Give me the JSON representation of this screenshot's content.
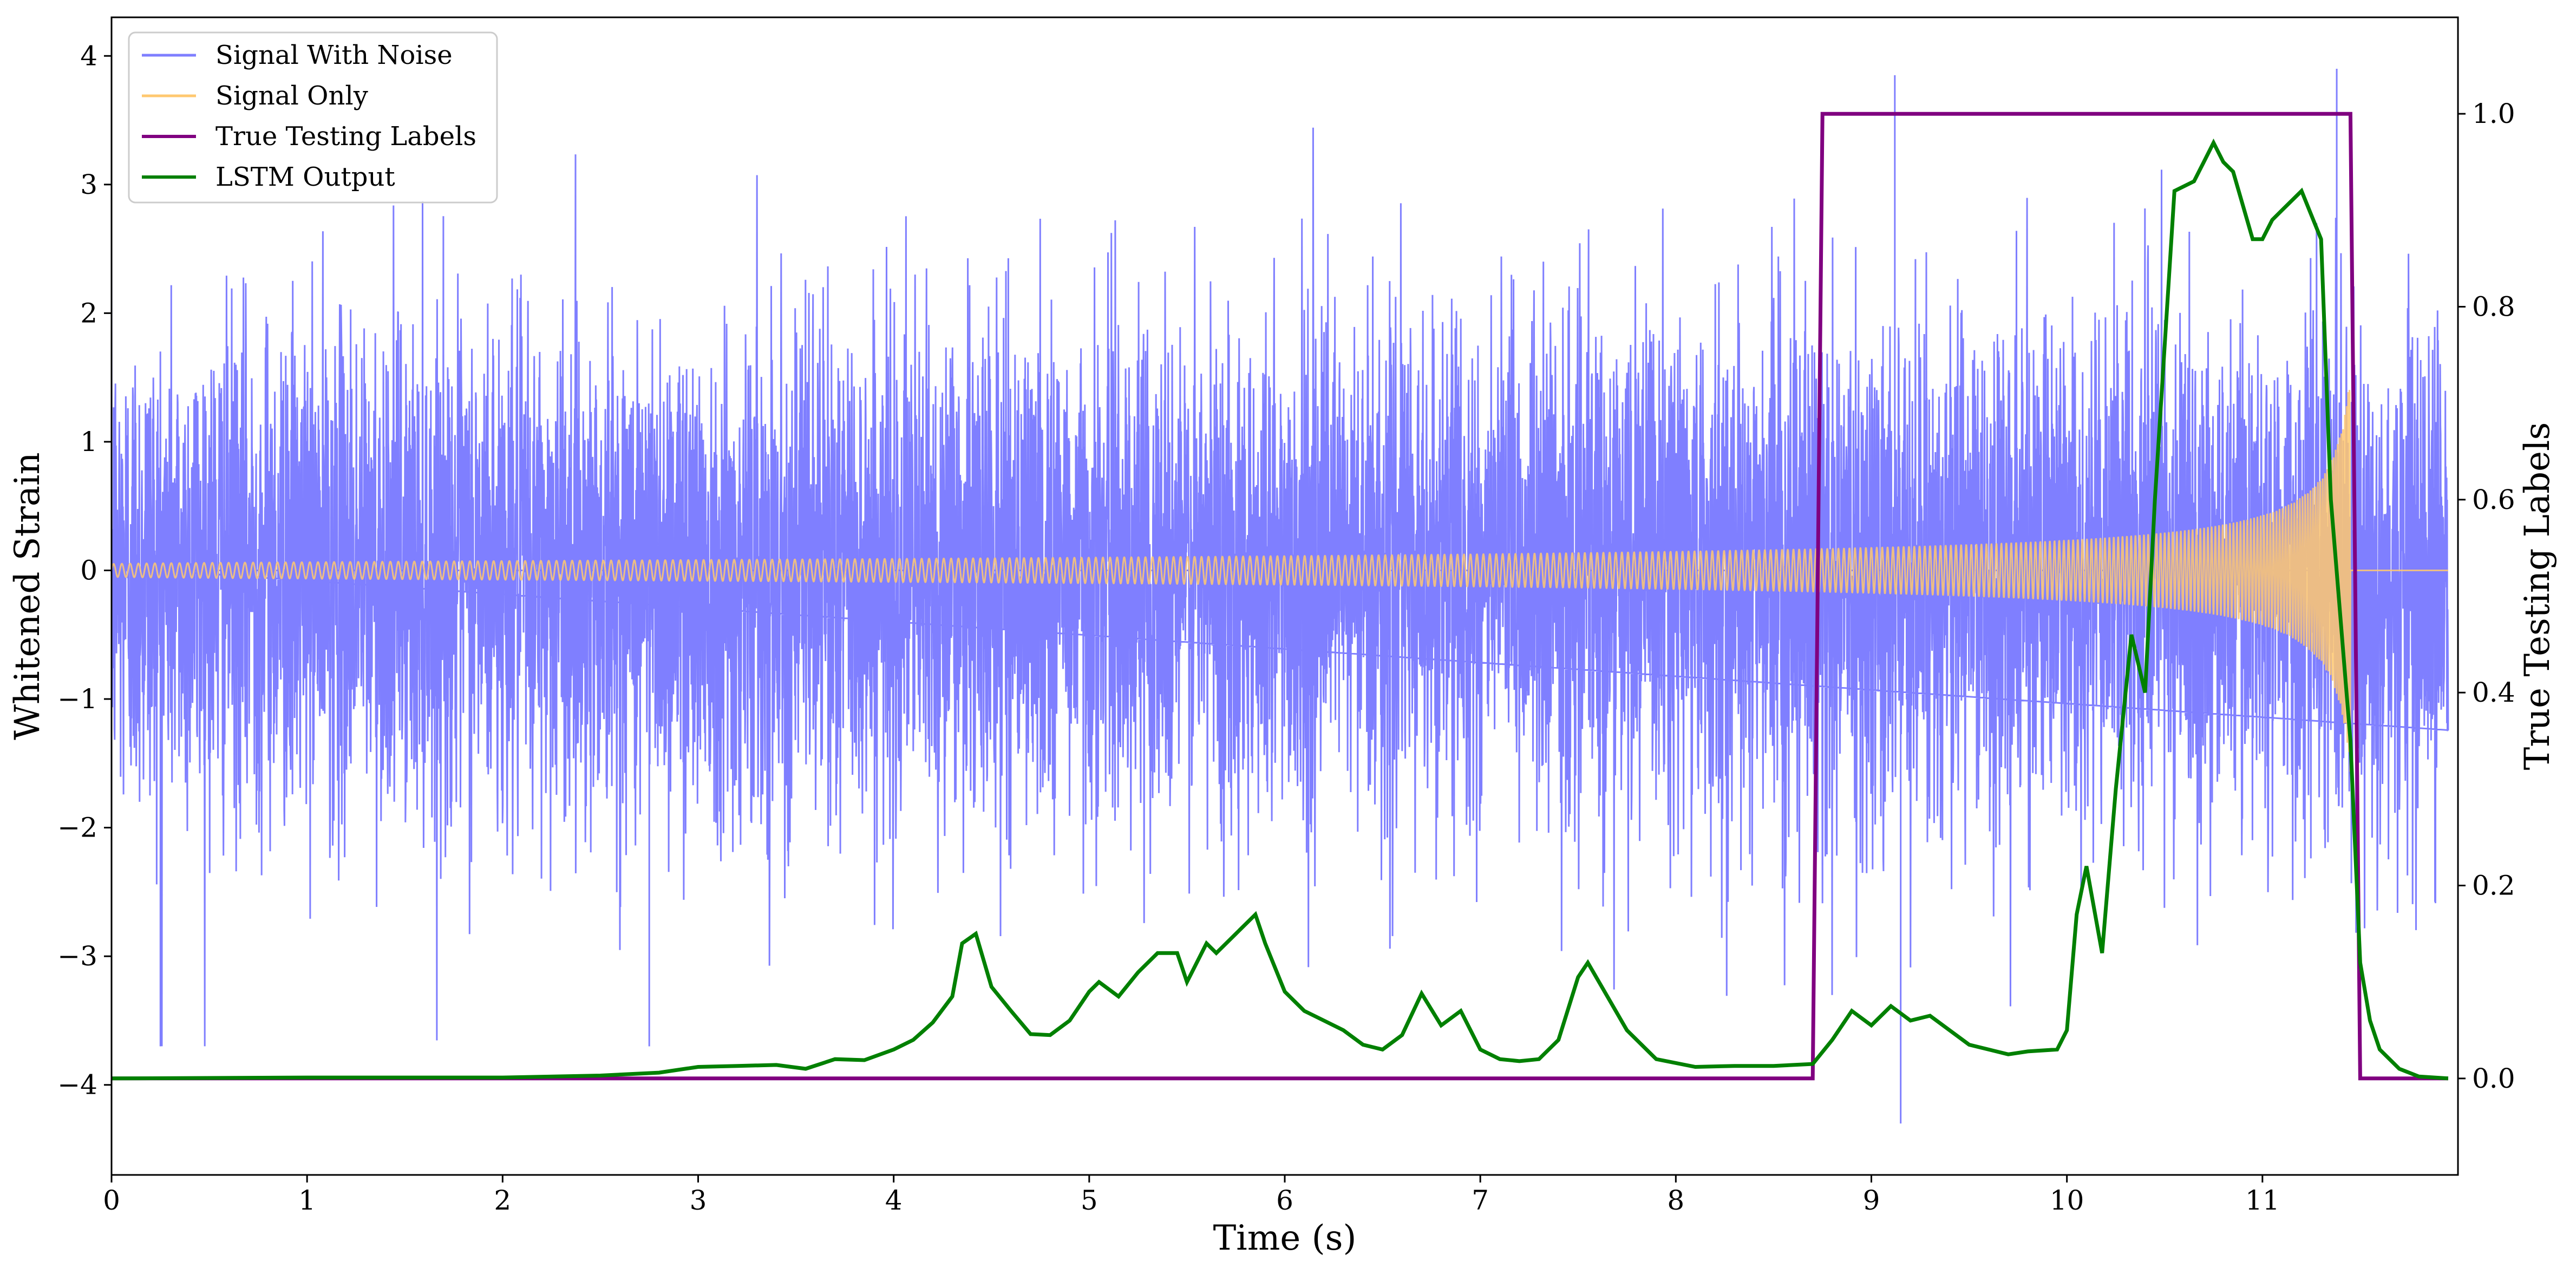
{
  "chart_data": {
    "type": "line",
    "xlabel": "Time (s)",
    "ylabel_left": "Whitened Strain",
    "ylabel_right": "True Testing Labels",
    "xlim": [
      0,
      12
    ],
    "ylim_left": [
      -4.7,
      4.3
    ],
    "ylim_right": [
      -0.1,
      1.1
    ],
    "x_ticks": [
      0,
      1,
      2,
      3,
      4,
      5,
      6,
      7,
      8,
      9,
      10,
      11
    ],
    "y_ticks_left": [
      4,
      3,
      2,
      1,
      0,
      -1,
      -2,
      -3,
      -4
    ],
    "y_ticks_left_labels": [
      "4",
      "3",
      "2",
      "1",
      "0",
      "−1",
      "−2",
      "−3",
      "−4"
    ],
    "y_ticks_right": [
      1.0,
      0.8,
      0.6,
      0.4,
      0.2,
      0.0
    ],
    "y_ticks_right_labels": [
      "1.0",
      "0.8",
      "0.6",
      "0.4",
      "0.2",
      "0.0"
    ],
    "grid": false,
    "legend_position": "top-left",
    "series": [
      {
        "name": "Signal With Noise",
        "axis": "left",
        "color": "#7f7fff",
        "description_range": [
          -4.3,
          3.9
        ],
        "peaks": [
          [
            0.25,
            -3.7
          ],
          [
            2.75,
            -3.7
          ],
          [
            9.12,
            3.85
          ],
          [
            9.15,
            -4.3
          ],
          [
            11.38,
            3.9
          ]
        ]
      },
      {
        "name": "Signal Only",
        "axis": "left",
        "color": "#ffc870",
        "chirp_start": 0.0,
        "chirp_end": 11.45,
        "amplitude_start": 0.05,
        "amplitude_end": 1.6
      },
      {
        "name": "True Testing Labels",
        "axis": "right",
        "color": "#800080",
        "x": [
          0,
          8.7,
          8.75,
          11.45,
          11.5,
          11.95
        ],
        "y": [
          0,
          0,
          1,
          1,
          0,
          0
        ]
      },
      {
        "name": "LSTM Output",
        "axis": "right",
        "color": "#008000",
        "x": [
          0,
          1.0,
          2.0,
          2.5,
          2.8,
          3.0,
          3.2,
          3.4,
          3.55,
          3.7,
          3.85,
          4.0,
          4.1,
          4.2,
          4.3,
          4.35,
          4.42,
          4.5,
          4.6,
          4.7,
          4.8,
          4.9,
          5.0,
          5.05,
          5.15,
          5.25,
          5.35,
          5.45,
          5.5,
          5.6,
          5.65,
          5.75,
          5.85,
          5.9,
          6.0,
          6.1,
          6.2,
          6.3,
          6.4,
          6.5,
          6.6,
          6.7,
          6.8,
          6.9,
          7.0,
          7.1,
          7.2,
          7.3,
          7.4,
          7.5,
          7.55,
          7.65,
          7.75,
          7.9,
          8.1,
          8.3,
          8.5,
          8.7,
          8.8,
          8.9,
          9.0,
          9.1,
          9.2,
          9.3,
          9.4,
          9.5,
          9.6,
          9.7,
          9.8,
          9.95,
          10.0,
          10.05,
          10.1,
          10.18,
          10.25,
          10.33,
          10.4,
          10.45,
          10.5,
          10.55,
          10.65,
          10.7,
          10.75,
          10.8,
          10.85,
          10.95,
          11.0,
          11.05,
          11.1,
          11.2,
          11.3,
          11.35,
          11.45,
          11.5,
          11.55,
          11.6,
          11.7,
          11.8,
          11.95
        ],
        "y": [
          0.0,
          0.001,
          0.001,
          0.003,
          0.006,
          0.012,
          0.013,
          0.014,
          0.01,
          0.02,
          0.019,
          0.03,
          0.04,
          0.058,
          0.085,
          0.14,
          0.15,
          0.095,
          0.07,
          0.046,
          0.045,
          0.06,
          0.09,
          0.1,
          0.085,
          0.11,
          0.13,
          0.13,
          0.1,
          0.14,
          0.13,
          0.15,
          0.17,
          0.14,
          0.09,
          0.07,
          0.06,
          0.05,
          0.035,
          0.03,
          0.045,
          0.088,
          0.055,
          0.07,
          0.03,
          0.02,
          0.018,
          0.02,
          0.04,
          0.105,
          0.12,
          0.085,
          0.05,
          0.02,
          0.012,
          0.013,
          0.013,
          0.015,
          0.04,
          0.07,
          0.055,
          0.075,
          0.06,
          0.065,
          0.05,
          0.035,
          0.03,
          0.025,
          0.028,
          0.03,
          0.05,
          0.17,
          0.22,
          0.13,
          0.3,
          0.46,
          0.4,
          0.6,
          0.76,
          0.92,
          0.93,
          0.95,
          0.97,
          0.95,
          0.94,
          0.87,
          0.87,
          0.89,
          0.9,
          0.92,
          0.87,
          0.6,
          0.35,
          0.12,
          0.06,
          0.03,
          0.01,
          0.002,
          0.0
        ]
      }
    ]
  }
}
